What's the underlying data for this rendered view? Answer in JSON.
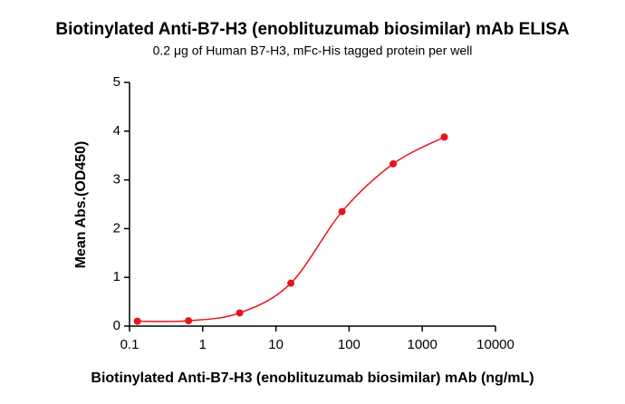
{
  "chart_data": {
    "type": "scatter",
    "title": "Biotinylated Anti-B7-H3 (enoblituzumab biosimilar) mAb ELISA",
    "subtitle": "0.2 μg of Human B7-H3, mFc-His tagged protein per well",
    "xlabel": "Biotinylated Anti-B7-H3 (enoblituzumab biosimilar) mAb (ng/mL)",
    "ylabel": "Mean Abs.(OD450)",
    "x": [
      0.128,
      0.64,
      3.2,
      16,
      80,
      400,
      2000
    ],
    "values": [
      0.1,
      0.11,
      0.27,
      0.88,
      2.35,
      3.33,
      3.88
    ],
    "color": "#e8141b",
    "xscale": "log",
    "xlim": [
      0.1,
      10000
    ],
    "xticks": [
      0.1,
      1,
      10,
      100,
      1000,
      10000
    ],
    "ylim": [
      0,
      5
    ],
    "yticks": [
      0,
      1,
      2,
      3,
      4,
      5
    ],
    "fit_line": true
  }
}
